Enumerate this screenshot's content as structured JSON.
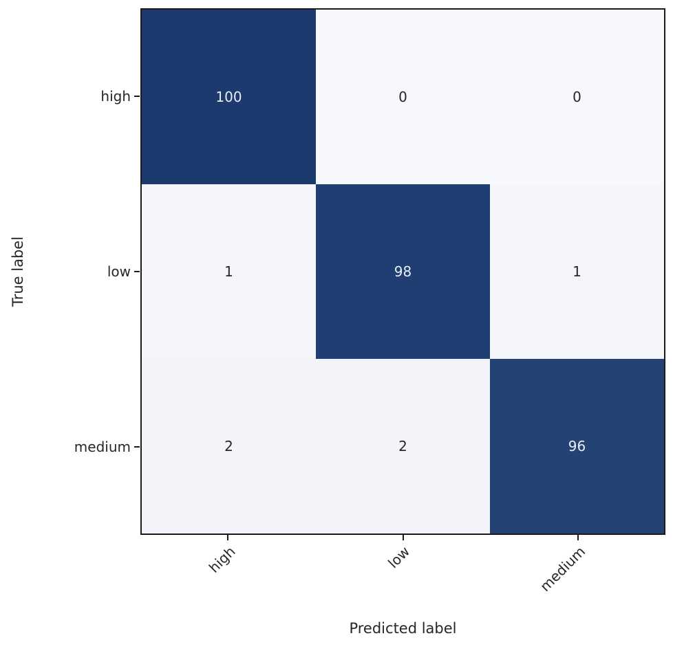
{
  "figure": {
    "background_color": "#ffffff",
    "spine_color": "#1a1a1a"
  },
  "chart_data": {
    "type": "heatmap",
    "subtype": "confusion-matrix",
    "title": "",
    "xlabel": "Predicted label",
    "ylabel": "True label",
    "x_categories": [
      "high",
      "low",
      "medium"
    ],
    "y_categories": [
      "high",
      "low",
      "medium"
    ],
    "matrix": [
      [
        100,
        0,
        0
      ],
      [
        1,
        98,
        1
      ],
      [
        2,
        2,
        96
      ]
    ],
    "vmin": 0,
    "vmax": 100,
    "colormap_low": "#f6f8fc",
    "colormap_high": "#1c3a6e",
    "cell_text_on_dark": "#e9edf5",
    "cell_text_on_light": "#262626",
    "tick_label_color": "#262626",
    "x_tick_rotation_deg": 45,
    "grid": false,
    "legend": "none",
    "colorbar": "none"
  }
}
